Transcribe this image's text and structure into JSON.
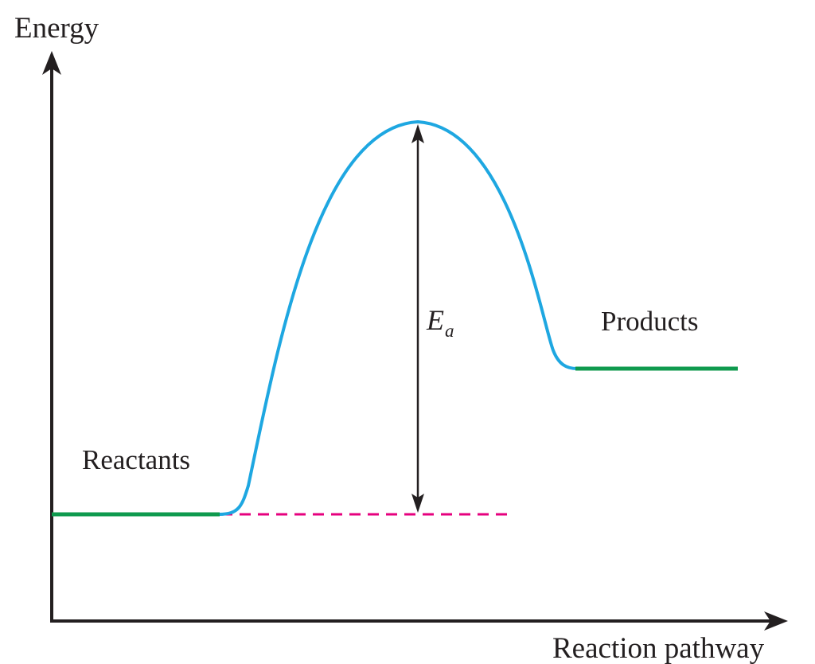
{
  "diagram": {
    "y_axis_label": "Energy",
    "x_axis_label": "Reaction pathway",
    "reactants_label": "Reactants",
    "products_label": "Products",
    "activation_energy": {
      "symbol": "E",
      "subscript": "a"
    }
  },
  "colors": {
    "axis": "#231f20",
    "curve": "#1ea7e1",
    "levels": "#0f9a4e",
    "reference_line": "#e6007e",
    "arrow": "#231f20",
    "text": "#231f20"
  }
}
